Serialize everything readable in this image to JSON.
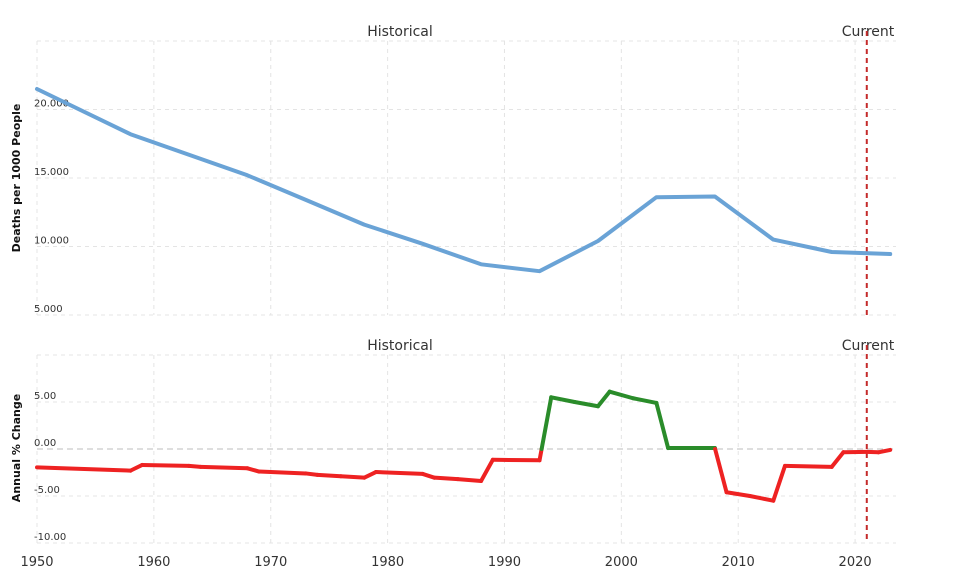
{
  "chart_data": [
    {
      "type": "line",
      "title": "",
      "ylabel": "Deaths per 1000 People",
      "xlabel": "",
      "xlim": [
        1950,
        2023.5
      ],
      "ylim": [
        5,
        25
      ],
      "yticks": [
        5,
        10,
        15,
        20
      ],
      "ytick_labels": [
        "5.000",
        "10.000",
        "15.000",
        "20.000"
      ],
      "section_labels": {
        "historical": "Historical",
        "current": "Current"
      },
      "current_marker_x": 2021,
      "color": "#6aa3d6",
      "series": [
        {
          "x": [
            1950,
            1958,
            1968,
            1973,
            1978,
            1983,
            1988,
            1993,
            1998,
            2003,
            2008,
            2013,
            2018,
            2023
          ],
          "values": [
            21.5,
            18.2,
            15.2,
            13.4,
            11.6,
            10.2,
            8.7,
            8.2,
            10.4,
            13.6,
            13.65,
            10.5,
            9.6,
            9.45
          ]
        }
      ]
    },
    {
      "type": "line",
      "title": "",
      "ylabel": "Annual % Change",
      "xlabel": "",
      "xlim": [
        1950,
        2023.5
      ],
      "ylim": [
        -10,
        10
      ],
      "yticks": [
        -10,
        -5,
        0,
        5
      ],
      "ytick_labels": [
        "-10.00",
        "-5.00",
        "0.00",
        "5.00"
      ],
      "xticks": [
        1950,
        1960,
        1970,
        1980,
        1990,
        2000,
        2010,
        2020
      ],
      "xtick_labels": [
        "1950",
        "1960",
        "1970",
        "1980",
        "1990",
        "2000",
        "2010",
        "2020"
      ],
      "section_labels": {
        "historical": "Historical",
        "current": "Current"
      },
      "current_marker_x": 2021,
      "positive_color": "#2a8c2a",
      "negative_color": "#ee2222",
      "series": [
        {
          "x": [
            1950,
            1958,
            1959,
            1963,
            1964,
            1968,
            1969,
            1973,
            1974,
            1976,
            1978,
            1979,
            1983,
            1984,
            1986,
            1988,
            1989,
            1993,
            1994,
            1996,
            1998,
            1999,
            2001,
            2003,
            2004,
            2008,
            2009,
            2011,
            2013,
            2014,
            2018,
            2019,
            2021,
            2022,
            2023
          ],
          "values": [
            -1.95,
            -2.3,
            -1.7,
            -1.8,
            -1.9,
            -2.05,
            -2.4,
            -2.6,
            -2.75,
            -2.9,
            -3.05,
            -2.45,
            -2.65,
            -3.05,
            -3.2,
            -3.4,
            -1.15,
            -1.2,
            5.5,
            5.0,
            4.55,
            6.1,
            5.4,
            4.9,
            0.1,
            0.1,
            -4.6,
            -5.0,
            -5.5,
            -1.8,
            -1.9,
            -0.35,
            -0.3,
            -0.35,
            -0.1
          ]
        }
      ]
    }
  ]
}
